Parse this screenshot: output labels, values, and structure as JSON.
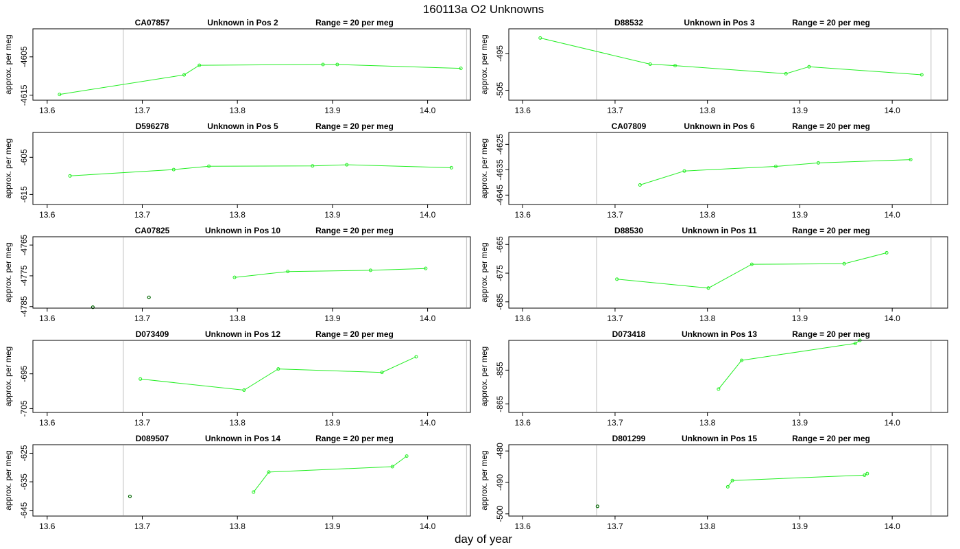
{
  "title": "160113a  O2 Unknowns",
  "xlabel": "day of year",
  "colors": {
    "line": "#22ee22",
    "marker_green": "#22ee22",
    "marker_dark": "#006600",
    "vline": "#c8c8c8",
    "axis": "#000000"
  },
  "chart_data": [
    {
      "type": "line",
      "id": "CA07857",
      "pos": "Unknown in Pos 2",
      "range": "Range = 20 per meg",
      "ylabel": "approx. per meg",
      "xlim": [
        13.585,
        14.045
      ],
      "xticks": [
        13.6,
        13.7,
        13.8,
        13.9,
        14.0
      ],
      "xtick_labels": [
        "13.6",
        "13.7",
        "13.8",
        "13.9",
        "14.0"
      ],
      "ylim": [
        -4616.3,
        -4597.7
      ],
      "yticks": [
        -4605,
        -4615
      ],
      "ytick_labels": [
        "-4605",
        "-4615"
      ],
      "vlines": [
        13.68,
        14.041
      ],
      "x": [
        13.613,
        13.744,
        13.76,
        13.89,
        13.905,
        14.035
      ],
      "y": [
        -4614.8,
        -4609.7,
        -4607.2,
        -4607.0,
        -4607.0,
        -4608.0
      ],
      "lost": []
    },
    {
      "type": "line",
      "id": "D88532",
      "pos": "Unknown in Pos 3",
      "range": "Range = 20 per meg",
      "ylabel": "approx. per meg",
      "xlim": [
        13.585,
        14.06
      ],
      "xticks": [
        13.6,
        13.7,
        13.8,
        13.9,
        14.0
      ],
      "xtick_labels": [
        "13.6",
        "13.7",
        "13.8",
        "13.9",
        "14.0"
      ],
      "ylim": [
        -507.7,
        -488.3
      ],
      "yticks": [
        -495,
        -505
      ],
      "ytick_labels": [
        "-495",
        "-505"
      ],
      "vlines": [
        13.68,
        14.042
      ],
      "x": [
        13.619,
        13.738,
        13.765,
        13.885,
        13.91,
        14.032
      ],
      "y": [
        -490.8,
        -497.9,
        -498.3,
        -500.5,
        -498.6,
        -500.8
      ],
      "lost": []
    },
    {
      "type": "line",
      "id": "D596278",
      "pos": "Unknown in Pos 5",
      "range": "Range = 20 per meg",
      "ylabel": "approx. per meg",
      "xlim": [
        13.585,
        14.045
      ],
      "xticks": [
        13.6,
        13.7,
        13.8,
        13.9,
        14.0
      ],
      "xtick_labels": [
        "13.6",
        "13.7",
        "13.8",
        "13.9",
        "14.0"
      ],
      "ylim": [
        -617.7,
        -598.3
      ],
      "yticks": [
        -605,
        -615
      ],
      "ytick_labels": [
        "-605",
        "-615"
      ],
      "vlines": [
        13.68,
        14.041
      ],
      "x": [
        13.624,
        13.733,
        13.77,
        13.879,
        13.915,
        14.025
      ],
      "y": [
        -610.0,
        -608.3,
        -607.4,
        -607.3,
        -607.0,
        -607.8
      ],
      "lost": []
    },
    {
      "type": "line",
      "id": "CA07809",
      "pos": "Unknown in Pos 6",
      "range": "Range = 20 per meg",
      "ylabel": "approx. per meg",
      "xlim": [
        13.585,
        14.06
      ],
      "xticks": [
        13.6,
        13.7,
        13.8,
        13.9,
        14.0
      ],
      "xtick_labels": [
        "13.6",
        "13.7",
        "13.8",
        "13.9",
        "14.0"
      ],
      "ylim": [
        -4648.7,
        -4620.3
      ],
      "yticks": [
        -4625,
        -4635,
        -4645
      ],
      "ytick_labels": [
        "-4625",
        "-4635",
        "-4645"
      ],
      "vlines": [
        13.68,
        14.042
      ],
      "x": [
        13.727,
        13.775,
        13.874,
        13.92,
        14.02
      ],
      "y": [
        -4641.0,
        -4635.5,
        -4633.7,
        -4632.3,
        -4631.0
      ],
      "lost": []
    },
    {
      "type": "line",
      "id": "CA07825",
      "pos": "Unknown in Pos 10",
      "range": "Range = 20 per meg",
      "ylabel": "approx. per meg",
      "xlim": [
        13.585,
        14.045
      ],
      "xticks": [
        13.6,
        13.7,
        13.8,
        13.9,
        14.0
      ],
      "xtick_labels": [
        "13.6",
        "13.7",
        "13.8",
        "13.9",
        "14.0"
      ],
      "ylim": [
        -4785.5,
        -4762.3
      ],
      "yticks": [
        -4765,
        -4775,
        -4785
      ],
      "ytick_labels": [
        "-4765",
        "-4775",
        "-4785"
      ],
      "vlines": [
        13.68,
        14.041
      ],
      "x": [
        13.797,
        13.853,
        13.94,
        13.998
      ],
      "y": [
        -4775.5,
        -4773.6,
        -4773.2,
        -4772.6
      ],
      "lost": [
        [
          13.648,
          -4785.2
        ],
        [
          13.707,
          -4782.0
        ]
      ]
    },
    {
      "type": "line",
      "id": "D88530",
      "pos": "Unknown in Pos 11",
      "range": "Range = 20 per meg",
      "ylabel": "approx. per meg",
      "xlim": [
        13.585,
        14.06
      ],
      "xticks": [
        13.6,
        13.7,
        13.8,
        13.9,
        14.0
      ],
      "xtick_labels": [
        "13.6",
        "13.7",
        "13.8",
        "13.9",
        "14.0"
      ],
      "ylim": [
        -687.2,
        -662.3
      ],
      "yticks": [
        -665,
        -675,
        -685
      ],
      "ytick_labels": [
        "-665",
        "-675",
        "-685"
      ],
      "vlines": [
        13.68,
        14.042
      ],
      "x": [
        13.702,
        13.801,
        13.848,
        13.948,
        13.994
      ],
      "y": [
        -677.1,
        -680.2,
        -671.9,
        -671.7,
        -667.9
      ],
      "lost": []
    },
    {
      "type": "line",
      "id": "D073409",
      "pos": "Unknown in Pos 12",
      "range": "Range = 20 per meg",
      "ylabel": "approx. per meg",
      "xlim": [
        13.585,
        14.045
      ],
      "xticks": [
        13.6,
        13.7,
        13.8,
        13.9,
        14.0
      ],
      "xtick_labels": [
        "13.6",
        "13.7",
        "13.8",
        "13.9",
        "14.0"
      ],
      "ylim": [
        -706.1,
        -685.4
      ],
      "yticks": [
        -695,
        -705
      ],
      "ytick_labels": [
        "-695",
        "-705"
      ],
      "vlines": [
        13.68,
        14.041
      ],
      "x": [
        13.698,
        13.807,
        13.843,
        13.952,
        13.988
      ],
      "y": [
        -696.5,
        -699.7,
        -693.6,
        -694.6,
        -690.1
      ],
      "lost": []
    },
    {
      "type": "line",
      "id": "D073418",
      "pos": "Unknown in Pos 13",
      "range": "Range = 20 per meg",
      "ylabel": "approx. per meg",
      "xlim": [
        13.585,
        14.06
      ],
      "xticks": [
        13.6,
        13.7,
        13.8,
        13.9,
        14.0
      ],
      "xtick_labels": [
        "13.6",
        "13.7",
        "13.8",
        "13.9",
        "14.0"
      ],
      "ylim": [
        -867.5,
        -846.2
      ],
      "yticks": [
        -855,
        -865
      ],
      "ytick_labels": [
        "-855",
        "-865"
      ],
      "vlines": [
        13.68,
        14.042
      ],
      "x": [
        13.812,
        13.837,
        13.96,
        13.965
      ],
      "y": [
        -860.6,
        -852.1,
        -847.1,
        -846.2
      ],
      "lost": []
    },
    {
      "type": "line",
      "id": "D089507",
      "pos": "Unknown in Pos 14",
      "range": "Range = 20 per meg",
      "ylabel": "approx. per meg",
      "xlim": [
        13.585,
        14.045
      ],
      "xticks": [
        13.6,
        13.7,
        13.8,
        13.9,
        14.0
      ],
      "xtick_labels": [
        "13.6",
        "13.7",
        "13.8",
        "13.9",
        "14.0"
      ],
      "ylim": [
        -647.0,
        -622.0
      ],
      "yticks": [
        -625,
        -635,
        -645
      ],
      "ytick_labels": [
        "-625",
        "-635",
        "-645"
      ],
      "vlines": [
        13.68,
        14.041
      ],
      "x": [
        13.817,
        13.833,
        13.963,
        13.978
      ],
      "y": [
        -638.6,
        -631.6,
        -629.7,
        -626.0
      ],
      "lost": [
        [
          13.687,
          -640.1
        ]
      ]
    },
    {
      "type": "line",
      "id": "D801299",
      "pos": "Unknown in Pos 15",
      "range": "Range = 20 per meg",
      "ylabel": "approx. per meg",
      "xlim": [
        13.585,
        14.06
      ],
      "xticks": [
        13.6,
        13.7,
        13.8,
        13.9,
        14.0
      ],
      "xtick_labels": [
        "13.6",
        "13.7",
        "13.8",
        "13.9",
        "14.0"
      ],
      "ylim": [
        -500.7,
        -478.0
      ],
      "yticks": [
        -480,
        -490,
        -500
      ],
      "ytick_labels": [
        "-480",
        "-490",
        "-500"
      ],
      "vlines": [
        13.68,
        14.042
      ],
      "x": [
        13.822,
        13.827,
        13.97,
        13.973
      ],
      "y": [
        -491.4,
        -489.4,
        -487.7,
        -487.2
      ],
      "lost": [
        [
          13.681,
          -497.6
        ]
      ]
    }
  ]
}
